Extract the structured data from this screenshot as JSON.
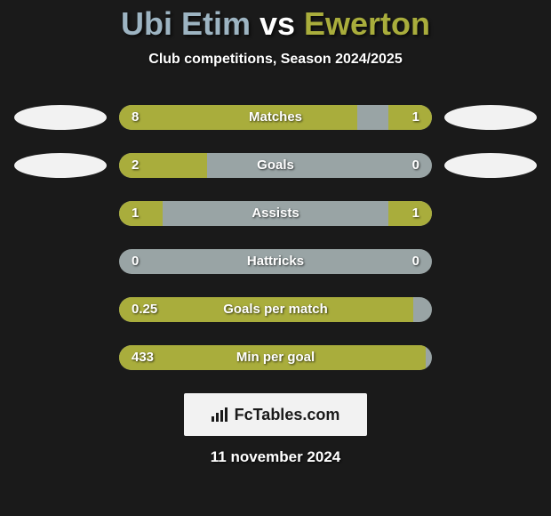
{
  "title": {
    "player1": "Ubi Etim",
    "vs": " vs ",
    "player2": "Ewerton",
    "color_player1": "#9db4c2",
    "color_vs": "#ffffff",
    "color_player2": "#a9ad3c"
  },
  "subtitle": "Club competitions, Season 2024/2025",
  "side_ellipse_color": "#f2f2f2",
  "bar_track_color": "#99a4a5",
  "bar_fill_color": "#a9ad3c",
  "stats": [
    {
      "label": "Matches",
      "left_val": "8",
      "right_val": "1",
      "left_pct": 76,
      "right_pct": 14,
      "show_ellipses": true
    },
    {
      "label": "Goals",
      "left_val": "2",
      "right_val": "0",
      "left_pct": 28,
      "right_pct": 0,
      "show_ellipses": true
    },
    {
      "label": "Assists",
      "left_val": "1",
      "right_val": "1",
      "left_pct": 14,
      "right_pct": 14,
      "show_ellipses": false
    },
    {
      "label": "Hattricks",
      "left_val": "0",
      "right_val": "0",
      "left_pct": 0,
      "right_pct": 0,
      "show_ellipses": false
    },
    {
      "label": "Goals per match",
      "left_val": "0.25",
      "right_val": "",
      "left_pct": 94,
      "right_pct": 0,
      "show_ellipses": false
    },
    {
      "label": "Min per goal",
      "left_val": "433",
      "right_val": "",
      "left_pct": 98,
      "right_pct": 0,
      "show_ellipses": false
    }
  ],
  "branding": {
    "text": "FcTables.com",
    "bg_color": "#f2f2f2",
    "text_color": "#1a1a1a"
  },
  "date": "11 november 2024"
}
